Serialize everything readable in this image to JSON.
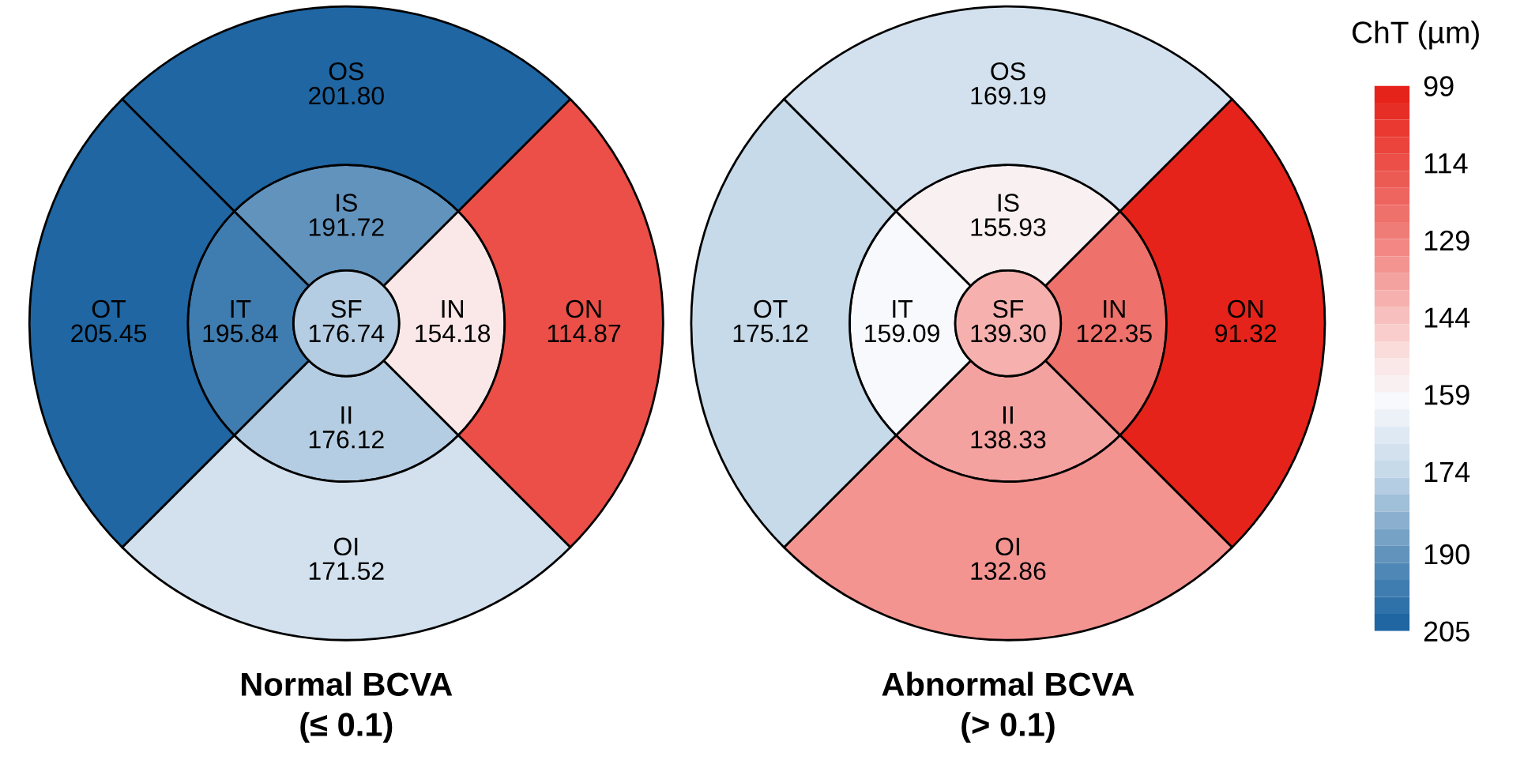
{
  "chart_data": [
    {
      "type": "other",
      "title": "Normal BCVA",
      "subtitle": "(≤ 0.1)",
      "categories": [
        "SF",
        "IS",
        "IN",
        "II",
        "IT",
        "OS",
        "ON",
        "OI",
        "OT"
      ],
      "values": [
        176.74,
        191.72,
        154.18,
        176.12,
        195.84,
        201.8,
        114.87,
        171.52,
        205.45
      ],
      "value_labels": [
        "176.74",
        "191.72",
        "154.18",
        "176.12",
        "195.84",
        "201.80",
        "114.87",
        "171.52",
        "205.45"
      ]
    },
    {
      "type": "other",
      "title": "Abnormal BCVA",
      "subtitle": "(> 0.1)",
      "categories": [
        "SF",
        "IS",
        "IN",
        "II",
        "IT",
        "OS",
        "ON",
        "OI",
        "OT"
      ],
      "values": [
        139.3,
        155.93,
        122.35,
        138.33,
        159.09,
        169.19,
        91.32,
        132.86,
        175.12
      ],
      "value_labels": [
        "139.30",
        "155.93",
        "122.35",
        "138.33",
        "159.09",
        "169.19",
        "91.32",
        "132.86",
        "175.12"
      ],
      "clabel": "ChT (µm)",
      "annotations": [
        "99",
        "114",
        "129",
        "144",
        "159",
        "174",
        "190",
        "205"
      ]
    }
  ]
}
